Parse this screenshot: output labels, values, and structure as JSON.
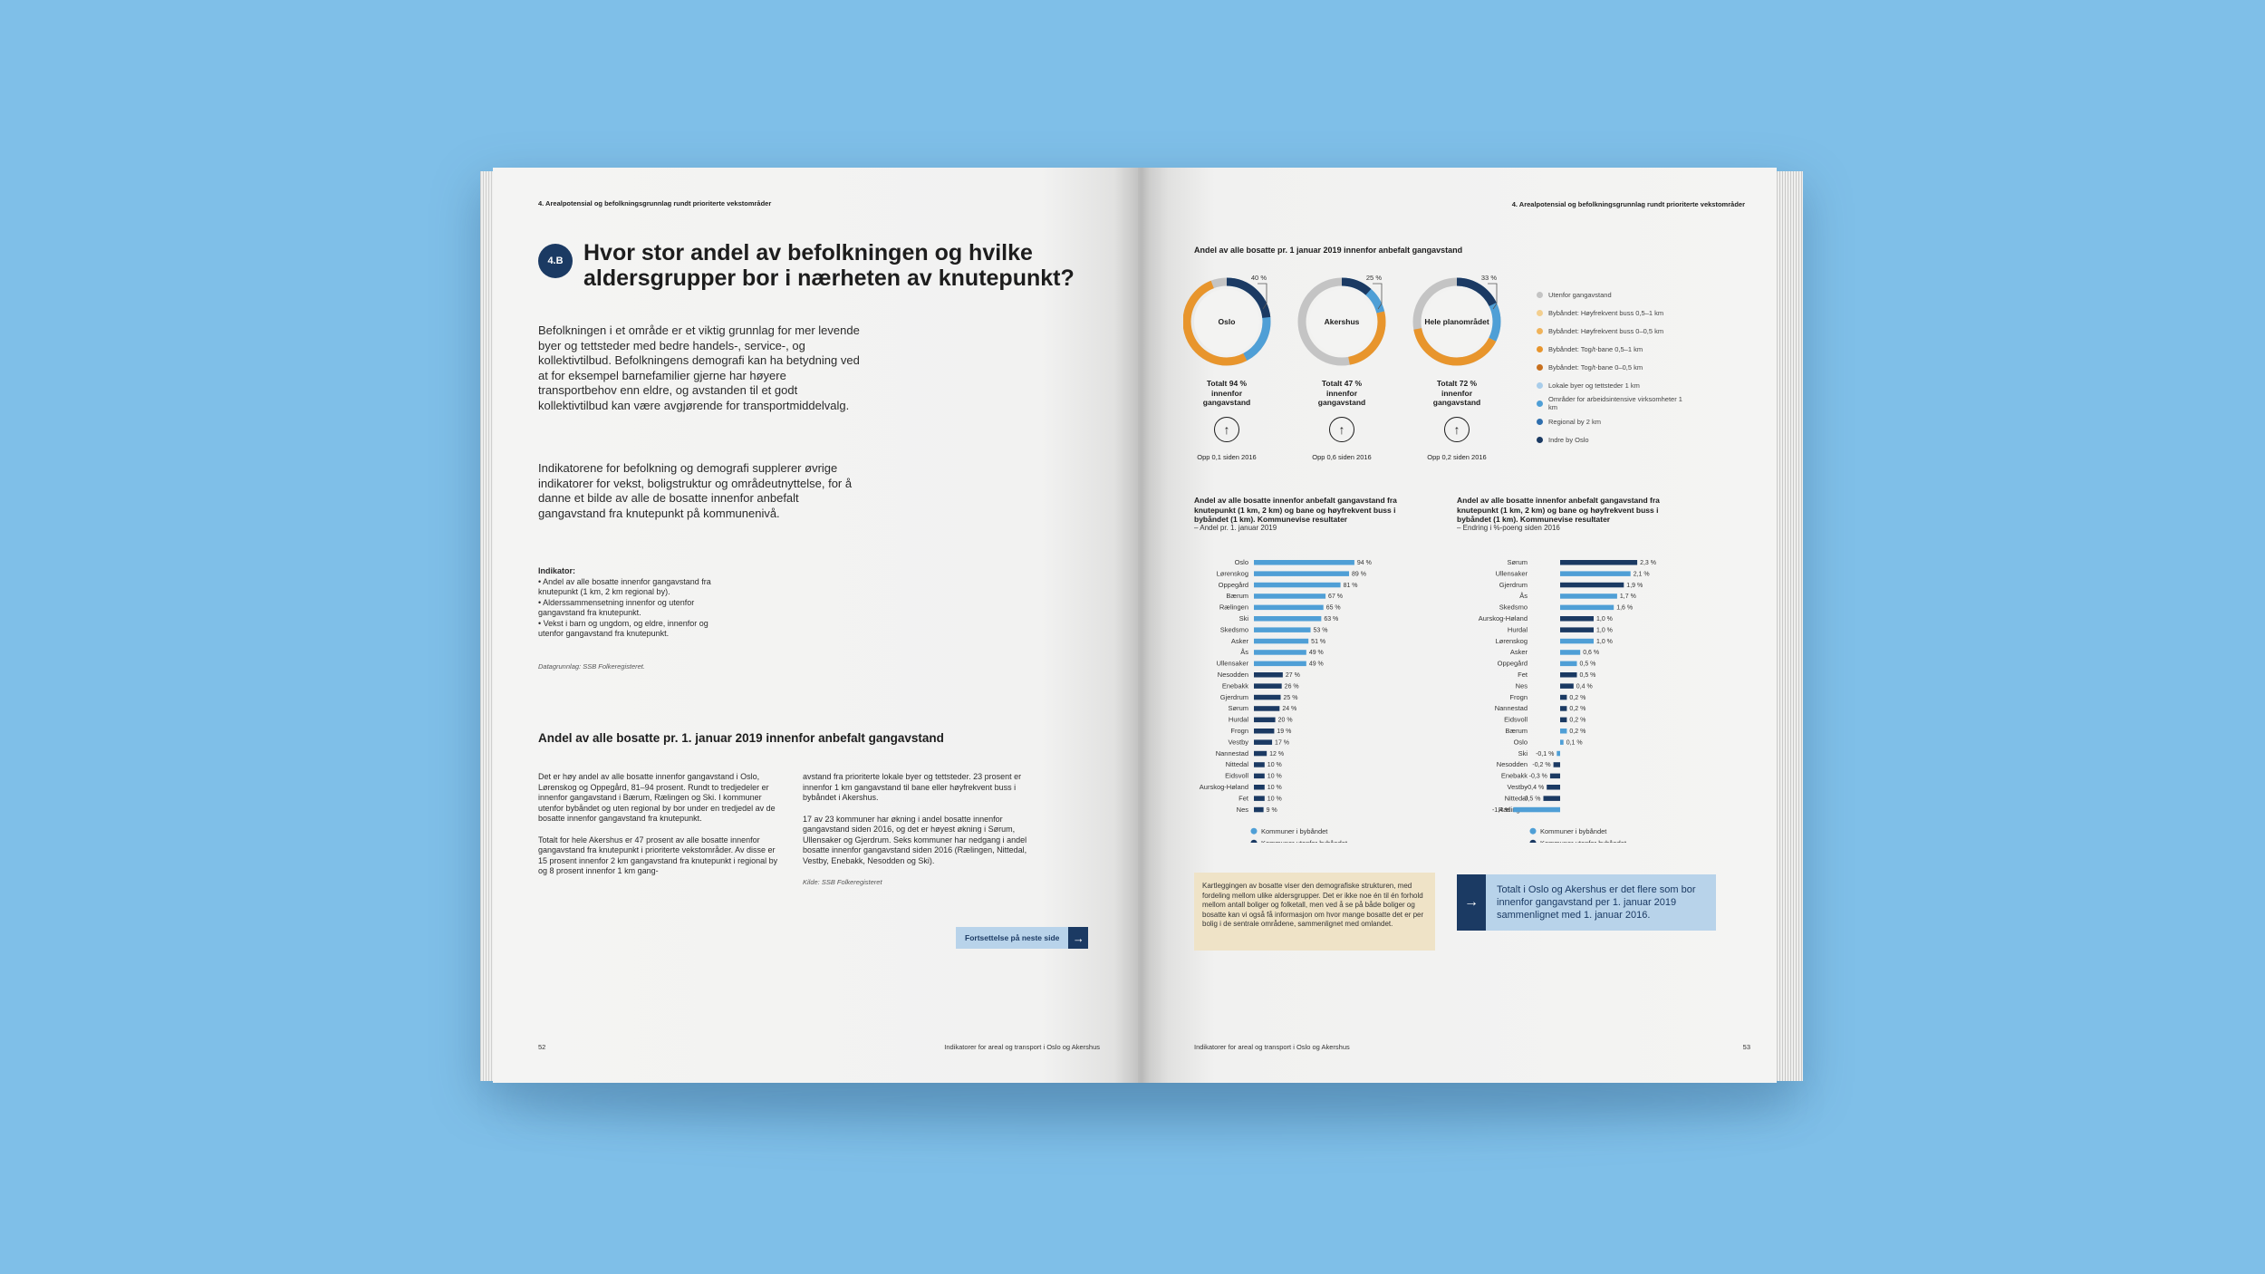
{
  "colors": {
    "background": "#7fbfe8",
    "navy": "#1b3a63",
    "light_blue": "#4f9fd6",
    "orange": "#e8952c"
  },
  "left": {
    "running_head": "4. Arealpotensial og befolkningsgrunnlag rundt prioriterte vekstområder",
    "badge": "4.B",
    "title": "Hvor stor andel av befolkningen og hvilke aldersgrupper bor i nærheten av knutepunkt?",
    "intro_p1": "Befolkningen i et område er et viktig grunnlag for mer levende byer og tettsteder med bedre handels-, service-, og kollektivtilbud. Befolkningens demografi kan ha betydning ved at for eksempel barnefamilier gjerne har høyere transportbehov enn eldre, og avstanden til et godt kollektivtilbud kan være avgjørende for transportmiddelvalg.",
    "intro_p2": "Indikatorene for befolkning og demografi supplerer øvrige indikatorer for vekst, boligstruktur og områdeutnyttelse, for å danne et bilde av alle de bosatte innenfor anbefalt gangavstand fra knutepunkt på kommunenivå.",
    "indicator_heading": "Indikator:",
    "indicator_1": "• Andel av alle bosatte innenfor gangavstand fra knutepunkt (1 km, 2 km regional by).",
    "indicator_2": "• Alderssammensetning innenfor og utenfor gangavstand fra knutepunkt.",
    "indicator_3": "• Vekst i barn og ungdom, og eldre, innenfor og utenfor gangavstand fra knutepunkt.",
    "data_source": "Datagrunnlag: SSB Folkeregisteret.",
    "section_title": "Andel av alle bosatte pr. 1. januar 2019 innenfor anbefalt gangavstand",
    "col1_p1": "Det er høy andel av alle bosatte innenfor gangavstand i Oslo, Lørenskog og Oppegård, 81–94 prosent. Rundt to tredjedeler er innenfor gangavstand i Bærum, Rælingen og Ski. I kommuner utenfor bybåndet og uten regional by bor under en tredjedel av de bosatte innenfor gangavstand fra knutepunkt.",
    "col1_p2": "Totalt for hele Akershus er 47 prosent av alle bosatte innenfor gangavstand fra knutepunkt i prioriterte vekstområder. Av disse er 15 prosent innenfor 2 km gangavstand fra knutepunkt i regional by og 8 prosent innenfor 1 km gang-",
    "col2_p1": "avstand fra prioriterte lokale byer og tettsteder. 23 prosent er innenfor 1 km gangavstand til bane eller høyfrekvent buss i bybåndet i Akershus.",
    "col2_p2": "17 av 23 kommuner har økning i andel bosatte innenfor gangavstand siden 2016, og det er høyest økning i Sørum, Ullensaker og Gjerdrum. Seks kommuner har nedgang i andel bosatte innenfor gangavstand siden 2016 (Rælingen, Nittedal, Vestby, Enebakk, Nesodden og Ski).",
    "col2_source": "Kilde: SSB Folkeregisteret",
    "continue_label": "Fortsettelse på neste side",
    "page_number": "52",
    "footer": "Indikatorer for areal og transport i Oslo og Akershus"
  },
  "right": {
    "running_head": "4. Arealpotensial og befolkningsgrunnlag rundt prioriterte vekstområder",
    "donut_section_title": "Andel av alle bosatte pr. 1 januar 2019 innenfor anbefalt gangavstand",
    "donuts": [
      {
        "name": "Oslo",
        "callout": "40 %",
        "total": "Totalt 94 % innenfor gangavstand",
        "change": "Opp 0,1 siden 2016",
        "inside_share": 94
      },
      {
        "name": "Akershus",
        "callout": "25 %",
        "total": "Totalt 47 % innenfor gangavstand",
        "change": "Opp 0,6 siden 2016",
        "inside_share": 47
      },
      {
        "name": "Hele planområdet",
        "callout": "33 %",
        "total": "Totalt 72 % innenfor gangavstand",
        "change": "Opp 0,2 siden 2016",
        "inside_share": 72
      }
    ],
    "donut_legend": [
      {
        "label": "Utenfor gangavstand",
        "color": "#c4c4c4"
      },
      {
        "label": "Bybåndet: Høyfrekvent buss 0,5–1 km",
        "color": "#f3cf8f"
      },
      {
        "label": "Bybåndet: Høyfrekvent buss 0–0,5 km",
        "color": "#f0b35a"
      },
      {
        "label": "Bybåndet: Tog/t-bane 0,5–1 km",
        "color": "#e8952c"
      },
      {
        "label": "Bybåndet: Tog/t-bane 0–0,5 km",
        "color": "#c8701e"
      },
      {
        "label": "Lokale byer og tettsteder 1 km",
        "color": "#a9cdea"
      },
      {
        "label": "Områder for arbeidsintensive virksomheter 1 km",
        "color": "#4f9fd6"
      },
      {
        "label": "Regional by 2 km",
        "color": "#2f6fae"
      },
      {
        "label": "Indre by Oslo",
        "color": "#1b3a63"
      }
    ],
    "chart_data": [
      {
        "type": "bar",
        "title": "Andel av alle bosatte innenfor anbefalt gangavstand fra knutepunkt (1 km, 2 km) og bane og høyfrekvent buss i bybåndet (1 km). Kommunevise resultater",
        "subtitle": "– Andel pr. 1. januar 2019",
        "categories": [
          "Oslo",
          "Lørenskog",
          "Oppegård",
          "Bærum",
          "Rælingen",
          "Ski",
          "Skedsmo",
          "Asker",
          "Ås",
          "Ullensaker",
          "Nesodden",
          "Enebakk",
          "Gjerdrum",
          "Sørum",
          "Hurdal",
          "Frogn",
          "Vestby",
          "Nannestad",
          "Nittedal",
          "Eidsvoll",
          "Aurskog-Høland",
          "Fet",
          "Nes"
        ],
        "values": [
          94,
          89,
          81,
          67,
          65,
          63,
          53,
          51,
          49,
          49,
          27,
          26,
          25,
          24,
          20,
          19,
          17,
          12,
          10,
          10,
          10,
          10,
          9
        ],
        "labels": [
          "94 %",
          "89 %",
          "81 %",
          "67 %",
          "65 %",
          "63 %",
          "53 %",
          "51 %",
          "49 %",
          "49 %",
          "27 %",
          "26 %",
          "25 %",
          "24 %",
          "20 %",
          "19 %",
          "17 %",
          "12 %",
          "10 %",
          "10 %",
          "10 %",
          "10 %",
          "9 %"
        ],
        "in_bybandet": [
          true,
          true,
          true,
          true,
          true,
          true,
          true,
          true,
          true,
          true,
          false,
          false,
          false,
          false,
          false,
          false,
          false,
          false,
          false,
          false,
          false,
          false,
          false
        ],
        "legend": [
          "Kommuner i bybåndet",
          "Kommuner utenfor bybåndet"
        ],
        "ylim": [
          0,
          100
        ]
      },
      {
        "type": "bar",
        "title": "Andel av alle bosatte innenfor anbefalt gangavstand fra knutepunkt (1 km, 2 km) og bane og høyfrekvent buss i bybåndet (1 km). Kommunevise resultater",
        "subtitle": "– Endring i %-poeng siden 2016",
        "categories": [
          "Sørum",
          "Ullensaker",
          "Gjerdrum",
          "Ås",
          "Skedsmo",
          "Aurskog-Høland",
          "Hurdal",
          "Lørenskog",
          "Asker",
          "Oppegård",
          "Fet",
          "Nes",
          "Frogn",
          "Nannestad",
          "Eidsvoll",
          "Bærum",
          "Oslo",
          "Ski",
          "Nesodden",
          "Enebakk",
          "Vestby",
          "Nittedal",
          "Rælingen"
        ],
        "values": [
          2.3,
          2.1,
          1.9,
          1.7,
          1.6,
          1.0,
          1.0,
          1.0,
          0.6,
          0.5,
          0.5,
          0.4,
          0.2,
          0.2,
          0.2,
          0.2,
          0.1,
          -0.1,
          -0.2,
          -0.3,
          -0.4,
          -0.5,
          -1.4
        ],
        "labels": [
          "2,3 %",
          "2,1 %",
          "1,9 %",
          "1,7 %",
          "1,6 %",
          "1,0 %",
          "1,0 %",
          "1,0 %",
          "0,6 %",
          "0,5 %",
          "0,5 %",
          "0,4 %",
          "0,2 %",
          "0,2 %",
          "0,2 %",
          "0,2 %",
          "0,1 %",
          "-0,1 %",
          "-0,2 %",
          "-0,3 %",
          "-0,4 %",
          "-0,5 %",
          "-1,4 %"
        ],
        "in_bybandet": [
          false,
          true,
          false,
          true,
          true,
          false,
          false,
          true,
          true,
          true,
          false,
          false,
          false,
          false,
          false,
          true,
          true,
          true,
          false,
          false,
          false,
          false,
          true
        ],
        "legend": [
          "Kommuner i bybåndet",
          "Kommuner utenfor bybåndet"
        ],
        "ylim": [
          -1.5,
          2.5
        ]
      }
    ],
    "note_box": "Kartleggingen av bosatte viser den demografiske strukturen, med fordeling mellom ulike aldersgrupper. Det er ikke noe én til én forhold mellom antall boliger og folketall, men ved å se på både boliger og bosatte kan vi også få informasjon om hvor mange bosatte det er per bolig i de sentrale områdene, sammenlignet med omlandet.",
    "info_box": "Totalt i Oslo og Akershus er det flere som bor innenfor gangavstand per 1. januar 2019 sammenlignet med 1. januar 2016.",
    "page_number": "53",
    "footer": "Indikatorer for areal og transport i Oslo og Akershus"
  }
}
